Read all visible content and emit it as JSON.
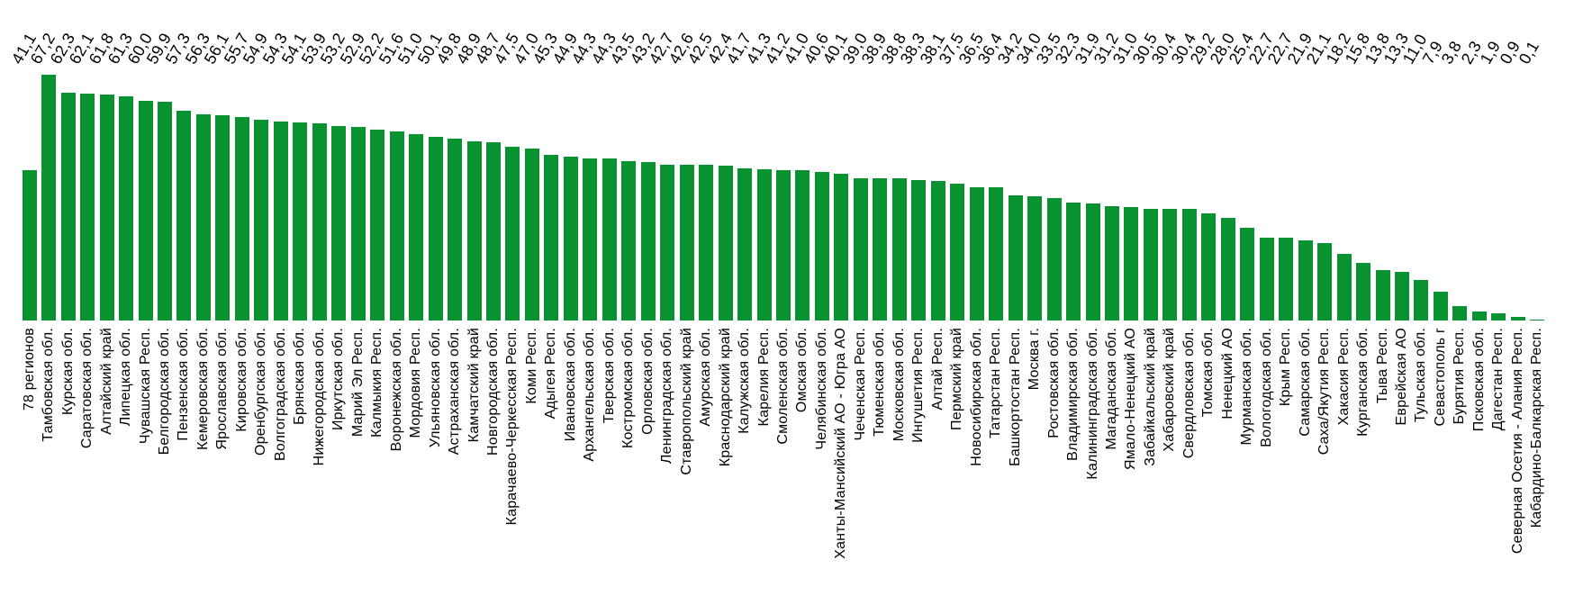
{
  "chart_data": {
    "type": "bar",
    "title": "",
    "xlabel": "",
    "ylabel": "",
    "ylim": [
      0,
      70
    ],
    "grid": false,
    "legend": false,
    "axes_visible": false,
    "value_labels_position": "top",
    "value_label_rotation_deg": -60,
    "category_label_rotation_deg": -90,
    "decimal_separator": ",",
    "bar_color": "#089230",
    "background_color": "#ffffff",
    "text_color": "#000000",
    "categories": [
      "78 регионов",
      "Тамбовская обл.",
      "Курская обл.",
      "Саратовская обл.",
      "Алтайский край",
      "Липецкая обл.",
      "Чувашская Респ.",
      "Белгородская обл.",
      "Пензенская обл.",
      "Кемеровская обл.",
      "Ярославская обл.",
      "Кировская обл.",
      "Оренбургская обл.",
      "Волгоградская обл.",
      "Брянская обл.",
      "Нижегородская обл.",
      "Иркутская обл.",
      "Марий Эл Респ.",
      "Калмыкия Респ.",
      "Воронежская обл.",
      "Мордовия Респ.",
      "Ульяновская обл.",
      "Астраханская обл.",
      "Камчатский край",
      "Новгородская обл.",
      "Карачаево-Черкесская Респ.",
      "Коми Респ.",
      "Адыгея Респ.",
      "Ивановская обл.",
      "Архангельская обл.",
      "Тверская обл.",
      "Костромская обл.",
      "Орловская обл.",
      "Ленинградская обл.",
      "Ставропольский край",
      "Амурская обл.",
      "Краснодарский край",
      "Калужская обл.",
      "Карелия Респ.",
      "Смоленская обл.",
      "Омская обл.",
      "Челябинская обл.",
      "Ханты-Мансийский АО - Югра АО",
      "Чеченская Респ.",
      "Тюменская обл.",
      "Московская обл.",
      "Ингушетия Респ.",
      "Алтай Респ.",
      "Пермский край",
      "Новосибирская обл.",
      "Татарстан Респ.",
      "Башкортостан Респ.",
      "Москва г.",
      "Ростовская обл.",
      "Владимирская обл.",
      "Калининградская обл.",
      "Магаданская обл.",
      "Ямало-Ненецкий АО",
      "Забайкальский край",
      "Хабаровский край",
      "Свердловская обл.",
      "Томская обл.",
      "Ненецкий АО",
      "Мурманская обл.",
      "Вологодская обл.",
      "Крым Респ.",
      "Самарская обл.",
      "Саха/Якутия Респ.",
      "Хакасия Респ.",
      "Курганская обл.",
      "Тыва Респ.",
      "Еврейская АО",
      "Тульская обл.",
      "Севастополь г",
      "Бурятия Респ.",
      "Псковская обл.",
      "Дагестан Респ.",
      "Северная Осетия - Алания Респ.",
      "Кабардино-Балкарская Респ."
    ],
    "values": [
      41.1,
      67.2,
      62.3,
      62.1,
      61.8,
      61.3,
      60.0,
      59.9,
      57.3,
      56.3,
      56.1,
      55.7,
      54.9,
      54.3,
      54.1,
      53.9,
      53.2,
      52.9,
      52.2,
      51.6,
      51.0,
      50.1,
      49.8,
      48.9,
      48.7,
      47.5,
      47.0,
      45.3,
      44.9,
      44.3,
      44.3,
      43.5,
      43.2,
      42.7,
      42.6,
      42.5,
      42.4,
      41.7,
      41.3,
      41.2,
      41.0,
      40.6,
      40.1,
      39.0,
      38.9,
      38.8,
      38.3,
      38.1,
      37.5,
      36.5,
      36.4,
      34.2,
      34.0,
      33.5,
      32.3,
      31.9,
      31.2,
      31.0,
      30.5,
      30.4,
      30.4,
      29.2,
      28.0,
      25.4,
      22.7,
      22.7,
      21.9,
      21.1,
      18.2,
      15.8,
      13.8,
      13.3,
      11.0,
      7.9,
      3.8,
      2.3,
      1.9,
      0.9,
      0.1
    ]
  }
}
